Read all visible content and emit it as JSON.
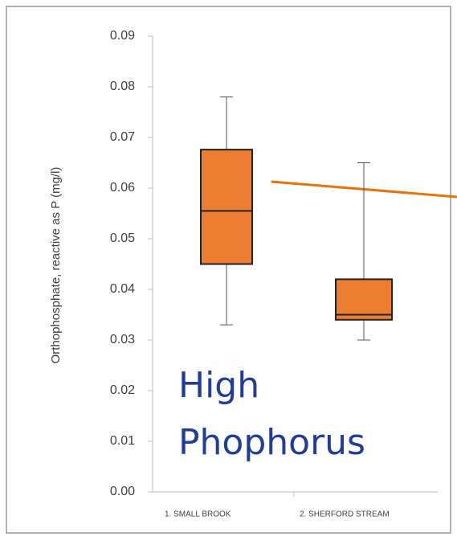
{
  "chart_data": {
    "type": "box",
    "y_label": "Orthophosphate, reactive as P (mg/l)",
    "categories": [
      "1. SMALL BROOK",
      "2. SHERFORD STREAM"
    ],
    "color": "#ed7d31",
    "boxes": [
      {
        "min": 0.033,
        "q1": 0.045,
        "median": 0.0555,
        "q3": 0.0676,
        "max": 0.078
      },
      {
        "min": 0.03,
        "q1": 0.034,
        "median": 0.035,
        "q3": 0.042,
        "max": 0.065
      }
    ],
    "ylim": [
      0,
      0.09
    ],
    "yticks": [
      {
        "value": 0,
        "label": "0.00"
      },
      {
        "value": 0.01,
        "label": "0.01"
      },
      {
        "value": 0.02,
        "label": "0.02"
      },
      {
        "value": 0.03,
        "label": "0.03"
      },
      {
        "value": 0.04,
        "label": "0.04"
      },
      {
        "value": 0.05,
        "label": "0.05"
      },
      {
        "value": 0.06,
        "label": "0.06"
      },
      {
        "value": 0.07,
        "label": "0.07"
      },
      {
        "value": 0.08,
        "label": "0.08"
      },
      {
        "value": 0.09,
        "label": "0.09"
      }
    ],
    "annotation": [
      "High",
      "Phophorus"
    ]
  }
}
